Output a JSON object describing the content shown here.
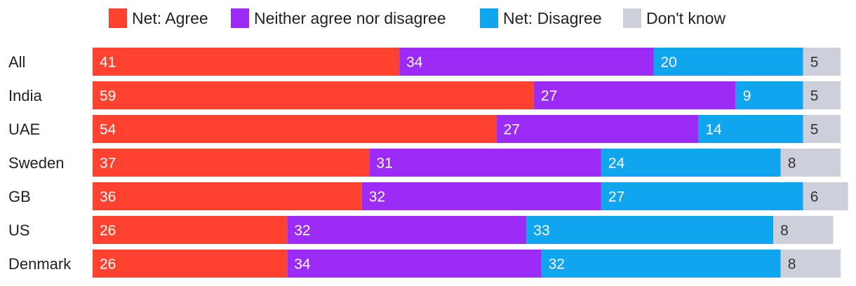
{
  "chart_data": {
    "type": "bar",
    "orientation": "horizontal",
    "stacked": true,
    "title": "",
    "xlabel": "",
    "ylabel": "",
    "legend_position": "top",
    "categories": [
      "All",
      "India",
      "UAE",
      "Sweden",
      "GB",
      "US",
      "Denmark"
    ],
    "series": [
      {
        "name": "Net: Agree",
        "color": "#ff4230",
        "label_color": "#ffffff",
        "values": [
          41,
          59,
          54,
          37,
          36,
          26,
          26
        ]
      },
      {
        "name": "Neither agree nor disagree",
        "color": "#9b2bf5",
        "label_color": "#ffffff",
        "values": [
          34,
          27,
          27,
          31,
          32,
          32,
          34
        ]
      },
      {
        "name": "Net: Disagree",
        "color": "#0fa6ef",
        "label_color": "#ffffff",
        "values": [
          20,
          9,
          14,
          24,
          27,
          33,
          32
        ]
      },
      {
        "name": "Don't know",
        "color": "#cdd0da",
        "label_color": "#333333",
        "values": [
          5,
          5,
          5,
          8,
          6,
          8,
          8
        ]
      }
    ]
  }
}
